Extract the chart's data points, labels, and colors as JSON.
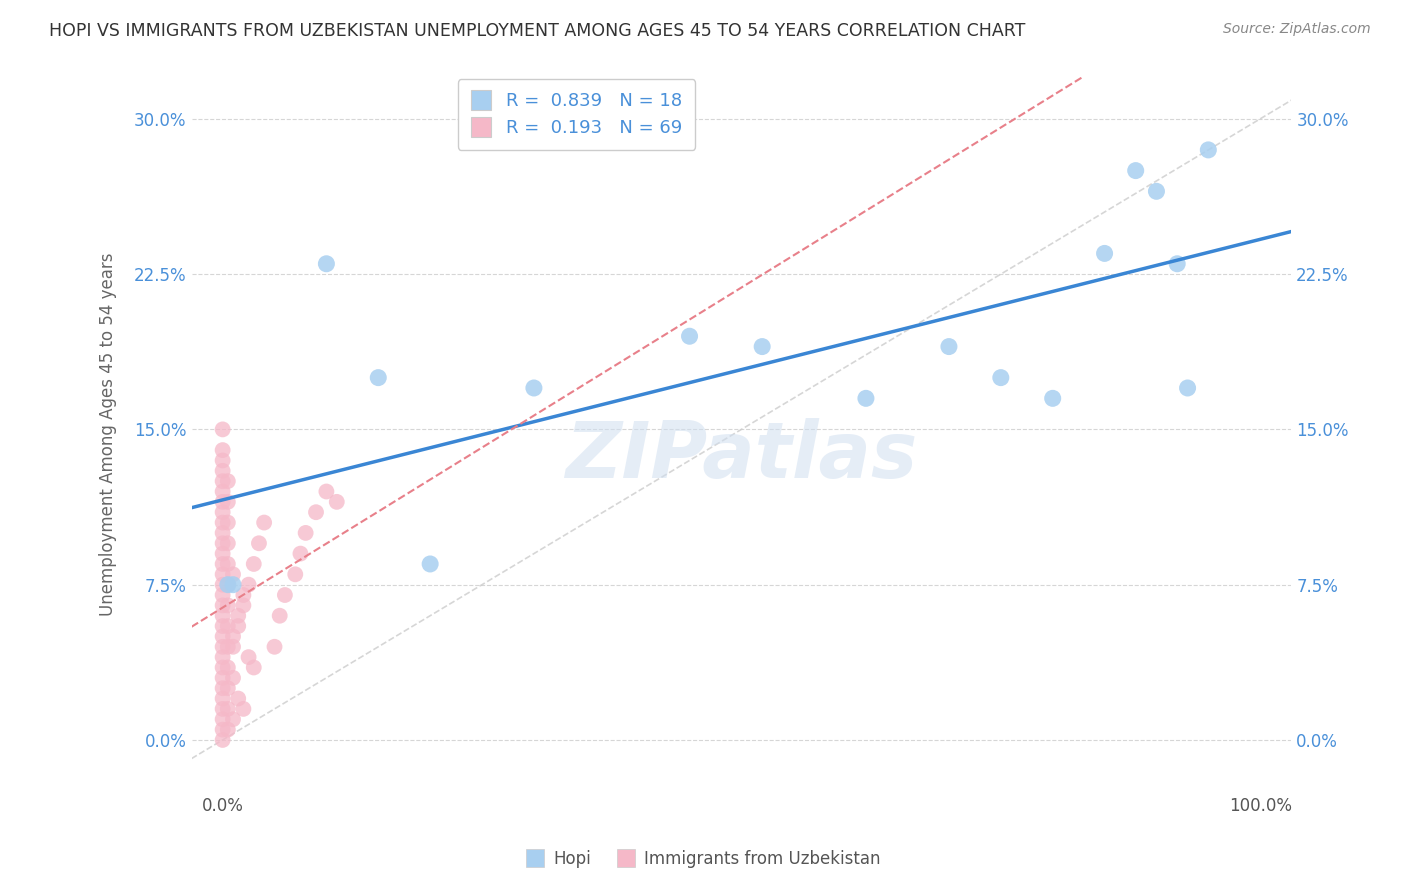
{
  "title": "HOPI VS IMMIGRANTS FROM UZBEKISTAN UNEMPLOYMENT AMONG AGES 45 TO 54 YEARS CORRELATION CHART",
  "source": "Source: ZipAtlas.com",
  "ylabel": "Unemployment Among Ages 45 to 54 years",
  "watermark": "ZIPatlas",
  "hopi_R": 0.839,
  "hopi_N": 18,
  "uzbek_R": 0.193,
  "uzbek_N": 69,
  "hopi_color": "#a8cff0",
  "uzbek_color": "#f5b8c8",
  "trend_hopi_color": "#3a86d4",
  "trend_uzbek_color": "#e8808a",
  "ref_line_color": "#cccccc",
  "hopi_x": [
    0.5,
    1.0,
    10.0,
    15.0,
    20.0,
    30.0,
    45.0,
    52.0,
    62.0,
    70.0,
    75.0,
    80.0,
    85.0,
    88.0,
    90.0,
    92.0,
    93.0,
    95.0
  ],
  "hopi_y": [
    7.5,
    7.5,
    23.0,
    17.5,
    8.5,
    17.0,
    19.5,
    19.0,
    16.5,
    19.0,
    17.5,
    16.5,
    23.5,
    27.5,
    26.5,
    23.0,
    17.0,
    28.5
  ],
  "uzbek_x": [
    0.0,
    0.0,
    0.0,
    0.0,
    0.0,
    0.0,
    0.0,
    0.0,
    0.0,
    0.0,
    0.0,
    0.0,
    0.0,
    0.0,
    0.0,
    0.0,
    0.0,
    0.0,
    0.0,
    0.0,
    0.0,
    0.0,
    0.0,
    0.0,
    0.0,
    0.0,
    0.0,
    0.0,
    0.0,
    0.0,
    0.5,
    0.5,
    0.5,
    0.5,
    0.5,
    0.5,
    0.5,
    0.5,
    0.5,
    0.5,
    0.5,
    1.0,
    1.0,
    1.0,
    1.5,
    1.5,
    2.0,
    2.0,
    2.5,
    3.0,
    0.5,
    0.5,
    1.0,
    1.0,
    1.5,
    2.0,
    2.5,
    3.0,
    3.5,
    4.0,
    5.0,
    5.5,
    6.0,
    7.0,
    7.5,
    8.0,
    9.0,
    10.0,
    11.0
  ],
  "uzbek_y": [
    0.0,
    0.5,
    1.0,
    1.5,
    2.0,
    2.5,
    3.0,
    3.5,
    4.0,
    4.5,
    5.0,
    5.5,
    6.0,
    6.5,
    7.0,
    7.5,
    8.0,
    8.5,
    9.0,
    9.5,
    10.0,
    10.5,
    11.0,
    11.5,
    12.0,
    12.5,
    13.0,
    13.5,
    14.0,
    15.0,
    0.5,
    1.5,
    2.5,
    3.5,
    4.5,
    5.5,
    6.5,
    7.5,
    8.5,
    9.5,
    10.5,
    1.0,
    3.0,
    5.0,
    2.0,
    6.0,
    1.5,
    7.0,
    4.0,
    3.5,
    11.5,
    12.5,
    4.5,
    8.0,
    5.5,
    6.5,
    7.5,
    8.5,
    9.5,
    10.5,
    4.5,
    6.0,
    7.0,
    8.0,
    9.0,
    10.0,
    11.0,
    12.0,
    11.5
  ],
  "xlim": [
    -3,
    103
  ],
  "ylim": [
    -2.5,
    32
  ],
  "yticks": [
    0.0,
    7.5,
    15.0,
    22.5,
    30.0
  ],
  "ytick_labels": [
    "0.0%",
    "7.5%",
    "15.0%",
    "22.5%",
    "30.0%"
  ],
  "xticks": [
    0.0,
    100.0
  ],
  "xtick_labels": [
    "0.0%",
    "100.0%"
  ],
  "background_color": "#ffffff",
  "grid_color": "#cccccc",
  "title_color": "#333333"
}
